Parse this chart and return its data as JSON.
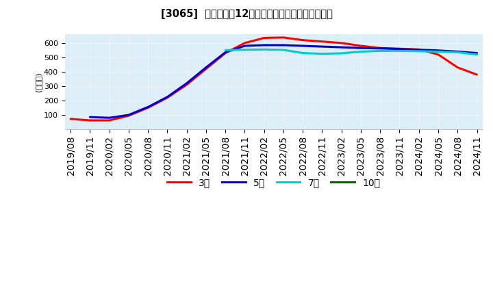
{
  "title": "[3065]  当期純利益12か月移動合計の標準偏差の推移",
  "ylabel": "(百万円)",
  "ylim": [
    0,
    660
  ],
  "yticks": [
    100,
    200,
    300,
    400,
    500,
    600
  ],
  "background_color": "#ddeef6",
  "legend": [
    "3年",
    "5年",
    "7年",
    "10年"
  ],
  "legend_colors": [
    "#ff0000",
    "#0000cc",
    "#00cccc",
    "#006600"
  ],
  "x_labels": [
    "2019/08",
    "2019/11",
    "2020/02",
    "2020/05",
    "2020/08",
    "2020/11",
    "2021/02",
    "2021/05",
    "2021/08",
    "2021/11",
    "2022/02",
    "2022/05",
    "2022/08",
    "2022/11",
    "2023/02",
    "2023/05",
    "2023/08",
    "2023/11",
    "2024/02",
    "2024/05",
    "2024/08",
    "2024/11"
  ],
  "series_3y": [
    72,
    62,
    62,
    95,
    150,
    220,
    310,
    420,
    530,
    600,
    635,
    638,
    620,
    610,
    600,
    580,
    565,
    560,
    555,
    520,
    430,
    380
  ],
  "series_5y": [
    null,
    85,
    80,
    100,
    155,
    225,
    320,
    430,
    535,
    580,
    585,
    585,
    580,
    575,
    570,
    565,
    562,
    558,
    553,
    548,
    540,
    530
  ],
  "series_7y": [
    null,
    null,
    null,
    null,
    null,
    null,
    null,
    null,
    550,
    553,
    555,
    552,
    530,
    525,
    528,
    540,
    545,
    545,
    543,
    540,
    535,
    520
  ],
  "series_10y": [
    null,
    null,
    null,
    null,
    null,
    null,
    null,
    null,
    null,
    null,
    null,
    null,
    null,
    null,
    null,
    null,
    null,
    null,
    null,
    null,
    null,
    null
  ]
}
